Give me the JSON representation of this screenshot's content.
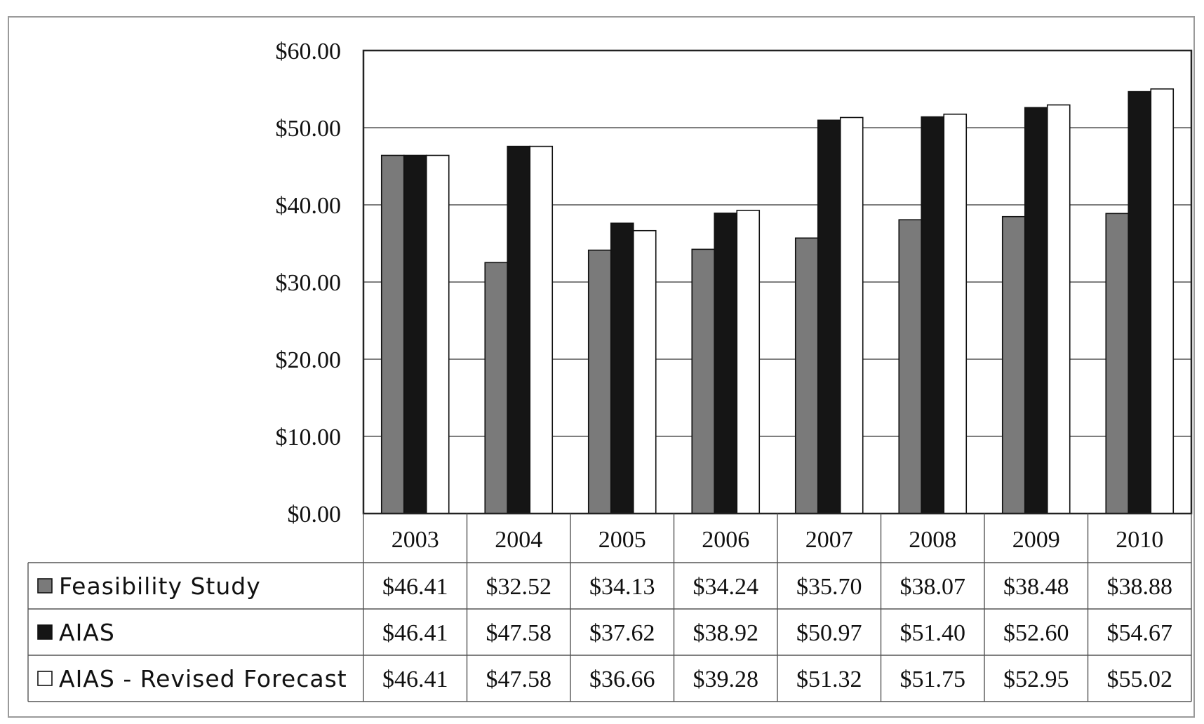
{
  "chart_data": {
    "type": "bar",
    "title": "",
    "xlabel": "",
    "ylabel": "",
    "ylim": [
      0,
      60
    ],
    "y_ticks": [
      "$0.00",
      "$10.00",
      "$20.00",
      "$30.00",
      "$40.00",
      "$50.00",
      "$60.00"
    ],
    "grid": "horizontal",
    "legend_placement": "data table rows below chart",
    "categories": [
      "2003",
      "2004",
      "2005",
      "2006",
      "2007",
      "2008",
      "2009",
      "2010"
    ],
    "series": [
      {
        "name": "Feasibility Study",
        "color": "#7a7a7a",
        "values": [
          46.41,
          32.52,
          34.13,
          34.24,
          35.7,
          38.07,
          38.48,
          38.88
        ],
        "labels": [
          "$46.41",
          "$32.52",
          "$34.13",
          "$34.24",
          "$35.70",
          "$38.07",
          "$38.48",
          "$38.88"
        ]
      },
      {
        "name": "AIAS",
        "color": "#151515",
        "values": [
          46.41,
          47.58,
          37.62,
          38.92,
          50.97,
          51.4,
          52.6,
          54.67
        ],
        "labels": [
          "$46.41",
          "$47.58",
          "$37.62",
          "$38.92",
          "$50.97",
          "$51.40",
          "$52.60",
          "$54.67"
        ]
      },
      {
        "name": "AIAS - Revised Forecast",
        "color": "#ffffff",
        "values": [
          46.41,
          47.58,
          36.66,
          39.28,
          51.32,
          51.75,
          52.95,
          55.02
        ],
        "labels": [
          "$46.41",
          "$47.58",
          "$36.66",
          "$39.28",
          "$51.32",
          "$51.75",
          "$52.95",
          "$55.02"
        ]
      }
    ]
  }
}
